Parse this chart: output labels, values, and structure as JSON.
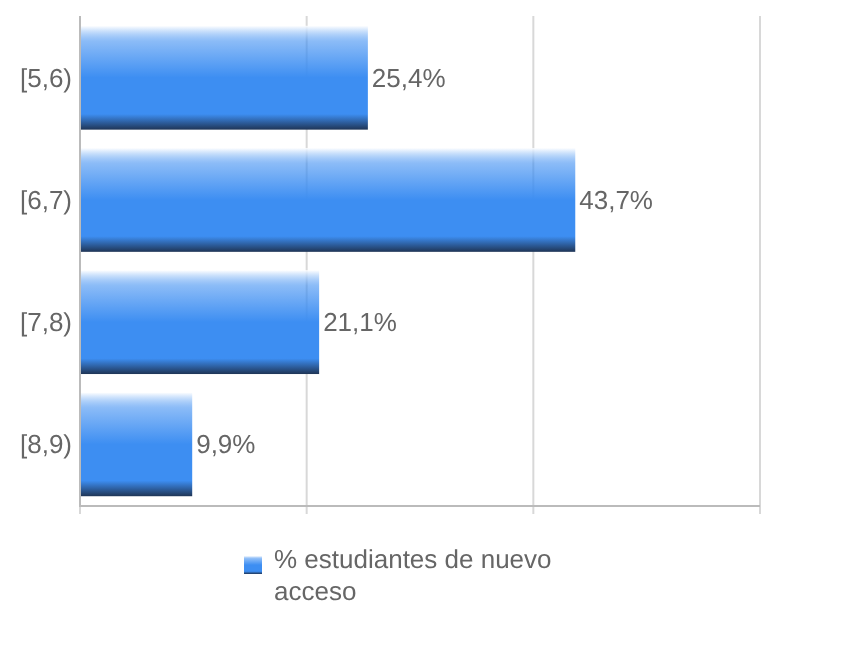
{
  "chart_data": {
    "type": "bar",
    "orientation": "horizontal",
    "categories": [
      "[5,6)",
      "[6,7)",
      "[7,8)",
      "[8,9)"
    ],
    "series": [
      {
        "name": "% estudiantes de nuevo acceso",
        "color": "#3d8ef2",
        "values": [
          25.4,
          43.7,
          21.1,
          9.9
        ],
        "value_labels": [
          "25,4%",
          "43,7%",
          "21,1%",
          "9,9%"
        ]
      }
    ],
    "xlim": [
      0,
      60
    ],
    "xticks": [
      {
        "value": 0,
        "label": null
      },
      {
        "value": 20,
        "label": null
      },
      {
        "value": 40,
        "label": null
      },
      {
        "value": 60,
        "label": null
      }
    ],
    "tick_labels": "y",
    "grid": "x",
    "legend": "bottom"
  }
}
